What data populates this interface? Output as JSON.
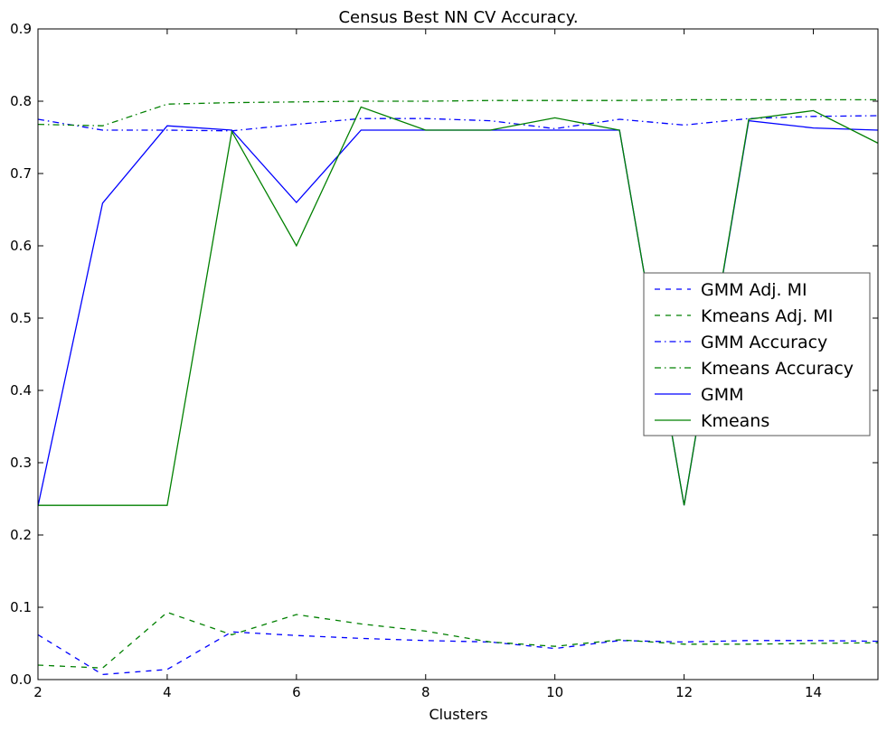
{
  "chart_data": {
    "type": "line",
    "title": "Census Best NN CV Accuracy.",
    "xlabel": "Clusters",
    "ylabel": "",
    "xlim": [
      2,
      15
    ],
    "ylim": [
      0.0,
      0.9
    ],
    "x_ticks": [
      "2",
      "4",
      "6",
      "8",
      "10",
      "12",
      "14"
    ],
    "y_ticks": [
      "0.0",
      "0.1",
      "0.2",
      "0.3",
      "0.4",
      "0.5",
      "0.6",
      "0.7",
      "0.8",
      "0.9"
    ],
    "grid": false,
    "legend_position": "center-right",
    "x": [
      2,
      3,
      4,
      5,
      6,
      7,
      8,
      9,
      10,
      11,
      12,
      13,
      14,
      15
    ],
    "series": [
      {
        "name": "GMM Adj. MI",
        "color": "#0000ff",
        "dash": "dashed",
        "values": [
          0.062,
          0.007,
          0.014,
          0.066,
          0.061,
          0.057,
          0.054,
          0.052,
          0.043,
          0.054,
          0.052,
          0.054,
          0.054,
          0.053
        ]
      },
      {
        "name": "Kmeans Adj. MI",
        "color": "#008000",
        "dash": "dashed",
        "values": [
          0.02,
          0.016,
          0.093,
          0.062,
          0.09,
          0.077,
          0.067,
          0.052,
          0.046,
          0.055,
          0.049,
          0.049,
          0.05,
          0.051
        ]
      },
      {
        "name": "GMM Accuracy",
        "color": "#0000ff",
        "dash": "dashdot",
        "values": [
          0.775,
          0.76,
          0.76,
          0.759,
          0.768,
          0.776,
          0.776,
          0.773,
          0.762,
          0.775,
          0.767,
          0.776,
          0.779,
          0.78
        ]
      },
      {
        "name": "Kmeans Accuracy",
        "color": "#008000",
        "dash": "dashdot",
        "values": [
          0.768,
          0.766,
          0.796,
          0.798,
          0.799,
          0.8,
          0.8,
          0.801,
          0.801,
          0.801,
          0.802,
          0.802,
          0.802,
          0.802
        ]
      },
      {
        "name": "GMM",
        "color": "#0000ff",
        "dash": "solid",
        "values": [
          0.24,
          0.659,
          0.766,
          0.76,
          0.66,
          0.76,
          0.76,
          0.76,
          0.76,
          0.76,
          0.241,
          0.773,
          0.763,
          0.76
        ]
      },
      {
        "name": "Kmeans",
        "color": "#008000",
        "dash": "solid",
        "values": [
          0.241,
          0.241,
          0.241,
          0.758,
          0.6,
          0.792,
          0.76,
          0.76,
          0.777,
          0.76,
          0.241,
          0.775,
          0.787,
          0.742
        ]
      }
    ]
  }
}
